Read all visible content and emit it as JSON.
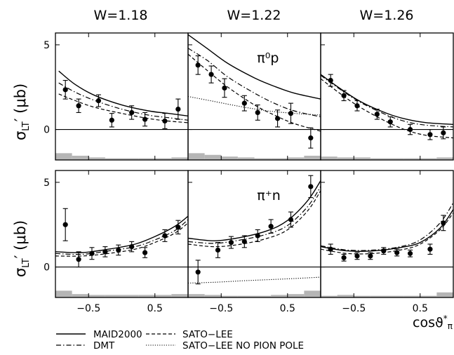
{
  "chart_data": {
    "type": "line",
    "columns": [
      "W=1.18",
      "W=1.22",
      "W=1.26"
    ],
    "rows": [
      "π⁰p",
      "π⁺n"
    ],
    "ylabel_main": "σ",
    "ylabel_sub": "LT",
    "ylabel_tail": "′ (μb)",
    "xlabel_main": "cosϑ",
    "xlabel_sup": "*",
    "xlabel_sub": "π",
    "xlim": [
      -1,
      1
    ],
    "ylim": [
      -1.8,
      5.7
    ],
    "x_ticks": [
      -0.5,
      0.5
    ],
    "x_tick_labels": [
      "−0.5",
      "0.5"
    ],
    "y_ticks": [
      0,
      5
    ],
    "y_tick_labels": [
      "0",
      "5"
    ],
    "legend": [
      {
        "label": "MAID2000",
        "dash": "solid"
      },
      {
        "label": "DMT",
        "dash": "dashdot"
      },
      {
        "label": "SATO−LEE",
        "dash": "dashed"
      },
      {
        "label": "SATO−LEE NO PION POLE",
        "dash": "dotted"
      }
    ],
    "panels": [
      {
        "row": 0,
        "col": 0,
        "label": "",
        "points": [
          {
            "x": -0.85,
            "y": 2.35,
            "err": 0.55
          },
          {
            "x": -0.65,
            "y": 1.4,
            "err": 0.4
          },
          {
            "x": -0.35,
            "y": 1.7,
            "err": 0.35
          },
          {
            "x": -0.15,
            "y": 0.55,
            "err": 0.4
          },
          {
            "x": 0.15,
            "y": 1.0,
            "err": 0.4
          },
          {
            "x": 0.35,
            "y": 0.6,
            "err": 0.4
          },
          {
            "x": 0.65,
            "y": 0.5,
            "err": 0.45
          },
          {
            "x": 0.85,
            "y": 1.2,
            "err": 0.6
          }
        ],
        "curves": {
          "MAID2000": [
            [
              -0.95,
              3.45
            ],
            [
              -0.7,
              2.65
            ],
            [
              -0.4,
              2.0
            ],
            [
              0,
              1.45
            ],
            [
              0.4,
              1.1
            ],
            [
              0.7,
              0.95
            ],
            [
              1.0,
              0.8
            ]
          ],
          "DMT": [
            [
              -0.95,
              2.75
            ],
            [
              -0.7,
              2.2
            ],
            [
              -0.4,
              1.7
            ],
            [
              0,
              1.2
            ],
            [
              0.4,
              0.85
            ],
            [
              0.7,
              0.7
            ],
            [
              1.0,
              0.55
            ]
          ],
          "SATO−LEE": [
            [
              -0.95,
              2.1
            ],
            [
              -0.7,
              1.7
            ],
            [
              -0.4,
              1.3
            ],
            [
              0,
              0.95
            ],
            [
              0.4,
              0.65
            ],
            [
              0.7,
              0.5
            ],
            [
              1.0,
              0.4
            ]
          ]
        },
        "systematics": [
          [
            -1,
            0.4
          ],
          [
            -0.75,
            0.25
          ],
          [
            -0.5,
            0.15
          ],
          [
            -0.25,
            0.1
          ],
          [
            0,
            0.1
          ],
          [
            0.25,
            0.1
          ],
          [
            0.5,
            0.1
          ],
          [
            0.75,
            0.15
          ]
        ]
      },
      {
        "row": 0,
        "col": 1,
        "label": "π⁰p",
        "points": [
          {
            "x": -0.85,
            "y": 3.8,
            "err": 0.55
          },
          {
            "x": -0.65,
            "y": 3.25,
            "err": 0.5
          },
          {
            "x": -0.45,
            "y": 2.45,
            "err": 0.55
          },
          {
            "x": -0.15,
            "y": 1.55,
            "err": 0.45
          },
          {
            "x": 0.05,
            "y": 1.0,
            "err": 0.45
          },
          {
            "x": 0.35,
            "y": 0.65,
            "err": 0.5
          },
          {
            "x": 0.55,
            "y": 0.95,
            "err": 0.6
          },
          {
            "x": 0.85,
            "y": -0.5,
            "err": 0.6
          }
        ],
        "curves": {
          "MAID2000": [
            [
              -1.0,
              5.6
            ],
            [
              -0.7,
              4.75
            ],
            [
              -0.4,
              3.9
            ],
            [
              0,
              3.05
            ],
            [
              0.3,
              2.55
            ],
            [
              0.6,
              2.15
            ],
            [
              1.0,
              1.8
            ]
          ],
          "DMT": [
            [
              -1.0,
              4.8
            ],
            [
              -0.7,
              4.05
            ],
            [
              -0.4,
              3.1
            ],
            [
              0,
              2.15
            ],
            [
              0.3,
              1.55
            ],
            [
              0.6,
              1.1
            ],
            [
              1.0,
              0.75
            ]
          ],
          "SATO−LEE": [
            [
              -1.0,
              4.45
            ],
            [
              -0.7,
              3.45
            ],
            [
              -0.4,
              2.5
            ],
            [
              0,
              1.45
            ],
            [
              0.3,
              0.85
            ],
            [
              0.6,
              0.35
            ],
            [
              1.0,
              -0.1
            ]
          ],
          "SATO−LEE NO PION POLE": [
            [
              -1.0,
              1.95
            ],
            [
              -0.6,
              1.65
            ],
            [
              -0.2,
              1.35
            ],
            [
              0.2,
              1.1
            ],
            [
              0.6,
              0.95
            ],
            [
              1.0,
              0.85
            ]
          ]
        },
        "systematics": [
          [
            -1,
            0.4
          ],
          [
            -0.75,
            0.3
          ],
          [
            -0.5,
            0.2
          ],
          [
            -0.25,
            0.15
          ],
          [
            0,
            0.1
          ],
          [
            0.25,
            0.1
          ],
          [
            0.5,
            0.15
          ],
          [
            0.75,
            0.25
          ]
        ]
      },
      {
        "row": 0,
        "col": 2,
        "label": "",
        "points": [
          {
            "x": -0.85,
            "y": 2.9,
            "err": 0.35
          },
          {
            "x": -0.65,
            "y": 2.0,
            "err": 0.3
          },
          {
            "x": -0.45,
            "y": 1.4,
            "err": 0.3
          },
          {
            "x": -0.15,
            "y": 0.9,
            "err": 0.3
          },
          {
            "x": 0.05,
            "y": 0.45,
            "err": 0.3
          },
          {
            "x": 0.35,
            "y": 0.0,
            "err": 0.3
          },
          {
            "x": 0.65,
            "y": -0.3,
            "err": 0.3
          },
          {
            "x": 0.85,
            "y": -0.2,
            "err": 0.35
          }
        ],
        "curves": {
          "MAID2000": [
            [
              -1.0,
              3.25
            ],
            [
              -0.7,
              2.4
            ],
            [
              -0.4,
              1.65
            ],
            [
              0,
              0.95
            ],
            [
              0.3,
              0.6
            ],
            [
              0.6,
              0.4
            ],
            [
              1.0,
              0.3
            ]
          ],
          "DMT": [
            [
              -1.0,
              3.2
            ],
            [
              -0.7,
              2.35
            ],
            [
              -0.4,
              1.6
            ],
            [
              0,
              0.85
            ],
            [
              0.3,
              0.45
            ],
            [
              0.6,
              0.25
            ],
            [
              1.0,
              0.15
            ]
          ],
          "SATO−LEE": [
            [
              -1.0,
              3.0
            ],
            [
              -0.7,
              2.1
            ],
            [
              -0.4,
              1.3
            ],
            [
              0,
              0.45
            ],
            [
              0.3,
              -0.05
            ],
            [
              0.6,
              -0.35
            ],
            [
              1.0,
              -0.5
            ]
          ]
        },
        "systematics": [
          [
            -1,
            0.2
          ],
          [
            -0.75,
            0.15
          ],
          [
            -0.5,
            0.15
          ],
          [
            -0.25,
            0.1
          ],
          [
            0,
            0.1
          ],
          [
            0.25,
            0.1
          ],
          [
            0.5,
            0.1
          ],
          [
            0.75,
            0.15
          ]
        ]
      },
      {
        "row": 1,
        "col": 0,
        "label": "",
        "points": [
          {
            "x": -0.85,
            "y": 2.5,
            "err": 0.95
          },
          {
            "x": -0.65,
            "y": 0.45,
            "err": 0.45
          },
          {
            "x": -0.45,
            "y": 0.8,
            "err": 0.35
          },
          {
            "x": -0.25,
            "y": 0.9,
            "err": 0.3
          },
          {
            "x": -0.05,
            "y": 1.0,
            "err": 0.3
          },
          {
            "x": 0.15,
            "y": 1.2,
            "err": 0.3
          },
          {
            "x": 0.35,
            "y": 0.85,
            "err": 0.3
          },
          {
            "x": 0.65,
            "y": 1.85,
            "err": 0.35
          },
          {
            "x": 0.85,
            "y": 2.35,
            "err": 0.4
          }
        ],
        "curves": {
          "MAID2000": [
            [
              -1.0,
              0.9
            ],
            [
              -0.6,
              0.85
            ],
            [
              -0.2,
              1.05
            ],
            [
              0.2,
              1.35
            ],
            [
              0.5,
              1.8
            ],
            [
              0.8,
              2.4
            ],
            [
              1.0,
              3.0
            ]
          ],
          "DMT": [
            [
              -1.0,
              0.8
            ],
            [
              -0.6,
              0.75
            ],
            [
              -0.2,
              0.95
            ],
            [
              0.2,
              1.2
            ],
            [
              0.5,
              1.6
            ],
            [
              0.8,
              2.15
            ],
            [
              1.0,
              2.8
            ]
          ],
          "SATO−LEE": [
            [
              -1.0,
              0.65
            ],
            [
              -0.6,
              0.65
            ],
            [
              -0.2,
              0.8
            ],
            [
              0.2,
              1.05
            ],
            [
              0.5,
              1.45
            ],
            [
              0.8,
              2.0
            ],
            [
              1.0,
              2.6
            ]
          ]
        },
        "systematics": [
          [
            -1,
            0.4
          ],
          [
            -0.75,
            0.2
          ],
          [
            -0.5,
            0.15
          ],
          [
            -0.25,
            0.15
          ],
          [
            0,
            0.15
          ],
          [
            0.25,
            0.15
          ],
          [
            0.5,
            0.15
          ],
          [
            0.75,
            0.2
          ]
        ]
      },
      {
        "row": 1,
        "col": 1,
        "label": "π⁺n",
        "points": [
          {
            "x": -0.85,
            "y": -0.3,
            "err": 0.7
          },
          {
            "x": -0.55,
            "y": 1.0,
            "err": 0.45
          },
          {
            "x": -0.35,
            "y": 1.45,
            "err": 0.35
          },
          {
            "x": -0.15,
            "y": 1.5,
            "err": 0.35
          },
          {
            "x": 0.05,
            "y": 1.85,
            "err": 0.35
          },
          {
            "x": 0.25,
            "y": 2.4,
            "err": 0.4
          },
          {
            "x": 0.55,
            "y": 2.8,
            "err": 0.45
          },
          {
            "x": 0.85,
            "y": 4.75,
            "err": 0.65
          }
        ],
        "curves": {
          "MAID2000": [
            [
              -1.0,
              1.7
            ],
            [
              -0.6,
              1.55
            ],
            [
              -0.2,
              1.75
            ],
            [
              0.2,
              2.15
            ],
            [
              0.5,
              2.75
            ],
            [
              0.8,
              3.9
            ],
            [
              1.0,
              5.1
            ]
          ],
          "DMT": [
            [
              -1.0,
              1.5
            ],
            [
              -0.6,
              1.4
            ],
            [
              -0.2,
              1.6
            ],
            [
              0.2,
              1.95
            ],
            [
              0.5,
              2.45
            ],
            [
              0.8,
              3.55
            ],
            [
              1.0,
              4.75
            ]
          ],
          "SATO−LEE": [
            [
              -1.0,
              1.35
            ],
            [
              -0.6,
              1.2
            ],
            [
              -0.2,
              1.35
            ],
            [
              0.2,
              1.7
            ],
            [
              0.5,
              2.2
            ],
            [
              0.8,
              3.3
            ],
            [
              1.0,
              4.5
            ]
          ],
          "SATO−LEE NO PION POLE": [
            [
              -1.0,
              -0.95
            ],
            [
              -0.6,
              -0.9
            ],
            [
              -0.2,
              -0.82
            ],
            [
              0.2,
              -0.75
            ],
            [
              0.6,
              -0.68
            ],
            [
              1.0,
              -0.6
            ]
          ]
        },
        "systematics": [
          [
            -1,
            0.2
          ],
          [
            -0.75,
            0.15
          ],
          [
            -0.5,
            0.1
          ],
          [
            -0.25,
            0.1
          ],
          [
            0,
            0.1
          ],
          [
            0.25,
            0.15
          ],
          [
            0.5,
            0.2
          ],
          [
            0.75,
            0.4
          ]
        ]
      },
      {
        "row": 1,
        "col": 2,
        "label": "",
        "points": [
          {
            "x": -0.85,
            "y": 1.05,
            "err": 0.3
          },
          {
            "x": -0.65,
            "y": 0.55,
            "err": 0.2
          },
          {
            "x": -0.45,
            "y": 0.65,
            "err": 0.2
          },
          {
            "x": -0.25,
            "y": 0.65,
            "err": 0.2
          },
          {
            "x": -0.05,
            "y": 0.95,
            "err": 0.2
          },
          {
            "x": 0.15,
            "y": 0.85,
            "err": 0.2
          },
          {
            "x": 0.35,
            "y": 0.8,
            "err": 0.2
          },
          {
            "x": 0.65,
            "y": 1.05,
            "err": 0.3
          },
          {
            "x": 0.85,
            "y": 2.6,
            "err": 0.45
          }
        ],
        "curves": {
          "MAID2000": [
            [
              -1.0,
              1.2
            ],
            [
              -0.6,
              0.95
            ],
            [
              -0.2,
              0.95
            ],
            [
              0.2,
              1.15
            ],
            [
              0.5,
              1.45
            ],
            [
              0.8,
              2.3
            ],
            [
              1.0,
              3.4
            ]
          ],
          "DMT": [
            [
              -1.0,
              1.25
            ],
            [
              -0.6,
              1.0
            ],
            [
              -0.2,
              1.0
            ],
            [
              0.2,
              1.2
            ],
            [
              0.5,
              1.6
            ],
            [
              0.8,
              2.6
            ],
            [
              1.0,
              3.8
            ]
          ],
          "SATO−LEE": [
            [
              -1.0,
              1.05
            ],
            [
              -0.6,
              0.8
            ],
            [
              -0.2,
              0.8
            ],
            [
              0.2,
              1.0
            ],
            [
              0.5,
              1.35
            ],
            [
              0.8,
              2.2
            ],
            [
              1.0,
              3.2
            ]
          ]
        },
        "systematics": [
          [
            -1,
            0.1
          ],
          [
            -0.75,
            0.15
          ],
          [
            -0.5,
            0.1
          ],
          [
            -0.25,
            0.1
          ],
          [
            0,
            0.1
          ],
          [
            0.25,
            0.1
          ],
          [
            0.5,
            0.1
          ],
          [
            0.75,
            0.3
          ]
        ]
      }
    ]
  }
}
